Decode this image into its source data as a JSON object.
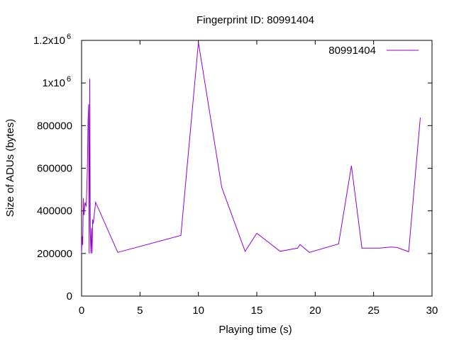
{
  "chart_data": {
    "type": "line",
    "title": "Fingerprint ID: 80991404",
    "xlabel": "Playing time (s)",
    "ylabel": "Size of ADUs (bytes)",
    "xlim": [
      0,
      30
    ],
    "ylim": [
      0,
      1200000
    ],
    "xticks": [
      0,
      5,
      10,
      15,
      20,
      25,
      30
    ],
    "xtick_labels": [
      "0",
      "5",
      "10",
      "15",
      "20",
      "25",
      "30"
    ],
    "yticks": [
      0,
      200000,
      400000,
      600000,
      800000,
      1000000,
      1200000
    ],
    "ytick_labels": [
      "0",
      "200000",
      "400000",
      "600000",
      "800000",
      "1x10",
      "1.2x10"
    ],
    "ytick_exponents": [
      "",
      "",
      "",
      "",
      "",
      "6",
      "6"
    ],
    "grid": false,
    "legend_position": "top-right",
    "series": [
      {
        "name": "80991404",
        "color": "#9400d3",
        "x": [
          0.0,
          0.05,
          0.1,
          0.15,
          0.2,
          0.3,
          0.4,
          0.5,
          0.55,
          0.6,
          0.65,
          0.7,
          0.75,
          0.8,
          0.85,
          0.9,
          0.95,
          1.0,
          1.2,
          3.1,
          8.5,
          10.0,
          12.0,
          14.0,
          15.0,
          17.0,
          18.5,
          18.7,
          19.5,
          22.0,
          23.1,
          24.0,
          25.5,
          26.5,
          27.0,
          28.0,
          29.0
        ],
        "y": [
          200000,
          280000,
          240000,
          460000,
          380000,
          440000,
          420000,
          600000,
          820000,
          900000,
          200000,
          1020000,
          300000,
          200000,
          320000,
          200000,
          360000,
          340000,
          440000,
          205000,
          285000,
          1190000,
          510000,
          210000,
          295000,
          210000,
          225000,
          242000,
          205000,
          245000,
          612000,
          225000,
          225000,
          230000,
          228000,
          208000,
          838000
        ]
      }
    ]
  }
}
